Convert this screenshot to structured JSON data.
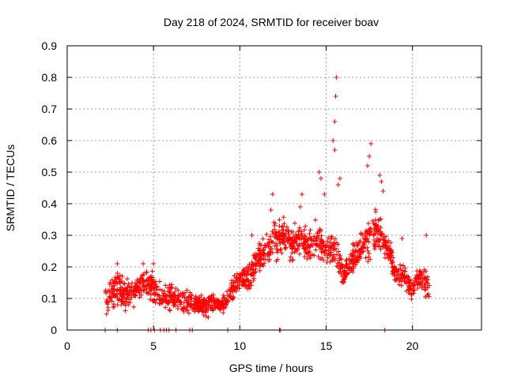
{
  "chart_data": {
    "type": "scatter",
    "title": "Day 218 of 2024, SRMTID for receiver boav",
    "xlabel": "GPS time / hours",
    "ylabel": "SRMTID / TECUs",
    "xlim": [
      0,
      24
    ],
    "ylim": [
      0,
      0.9
    ],
    "xticks": [
      0,
      5,
      10,
      15,
      20
    ],
    "xtick_labels": [
      "0",
      "5",
      "10",
      "15",
      "20"
    ],
    "yticks": [
      0,
      0.1,
      0.2,
      0.3,
      0.4,
      0.5,
      0.6,
      0.7,
      0.8,
      0.9
    ],
    "ytick_labels": [
      "0",
      "0.1",
      "0.2",
      "0.3",
      "0.4",
      "0.5",
      "0.6",
      "0.7",
      "0.8",
      "0.9"
    ],
    "grid": true,
    "marker": "+",
    "color": "#ff0000",
    "envelope": [
      [
        2.2,
        0.09,
        0.04
      ],
      [
        2.6,
        0.12,
        0.05
      ],
      [
        3.0,
        0.13,
        0.05
      ],
      [
        3.4,
        0.11,
        0.04
      ],
      [
        3.8,
        0.12,
        0.04
      ],
      [
        4.2,
        0.14,
        0.04
      ],
      [
        4.6,
        0.15,
        0.04
      ],
      [
        5.0,
        0.13,
        0.05
      ],
      [
        5.5,
        0.1,
        0.04
      ],
      [
        6.0,
        0.11,
        0.04
      ],
      [
        6.5,
        0.09,
        0.03
      ],
      [
        7.0,
        0.09,
        0.04
      ],
      [
        7.5,
        0.08,
        0.03
      ],
      [
        8.0,
        0.08,
        0.03
      ],
      [
        8.5,
        0.08,
        0.03
      ],
      [
        9.0,
        0.08,
        0.03
      ],
      [
        9.5,
        0.12,
        0.04
      ],
      [
        10.0,
        0.16,
        0.04
      ],
      [
        10.5,
        0.17,
        0.04
      ],
      [
        11.0,
        0.22,
        0.05
      ],
      [
        11.5,
        0.25,
        0.05
      ],
      [
        12.0,
        0.28,
        0.06
      ],
      [
        12.5,
        0.3,
        0.05
      ],
      [
        13.0,
        0.27,
        0.05
      ],
      [
        13.5,
        0.3,
        0.05
      ],
      [
        14.0,
        0.26,
        0.05
      ],
      [
        14.5,
        0.28,
        0.06
      ],
      [
        15.0,
        0.25,
        0.05
      ],
      [
        15.5,
        0.26,
        0.06
      ],
      [
        16.0,
        0.17,
        0.04
      ],
      [
        16.5,
        0.22,
        0.05
      ],
      [
        17.0,
        0.25,
        0.05
      ],
      [
        17.5,
        0.3,
        0.06
      ],
      [
        18.0,
        0.32,
        0.06
      ],
      [
        18.5,
        0.27,
        0.05
      ],
      [
        19.0,
        0.18,
        0.04
      ],
      [
        19.5,
        0.17,
        0.04
      ],
      [
        20.0,
        0.13,
        0.04
      ],
      [
        20.5,
        0.17,
        0.04
      ],
      [
        21.0,
        0.13,
        0.04
      ]
    ],
    "peaks": [
      [
        2.9,
        0.21
      ],
      [
        4.4,
        0.21
      ],
      [
        5.0,
        0.21
      ],
      [
        10.7,
        0.3
      ],
      [
        11.9,
        0.43
      ],
      [
        11.8,
        0.38
      ],
      [
        13.6,
        0.43
      ],
      [
        13.5,
        0.39
      ],
      [
        14.6,
        0.5
      ],
      [
        14.7,
        0.48
      ],
      [
        14.9,
        0.43
      ],
      [
        15.4,
        0.6
      ],
      [
        15.5,
        0.66
      ],
      [
        15.55,
        0.74
      ],
      [
        15.6,
        0.8
      ],
      [
        15.5,
        0.57
      ],
      [
        15.7,
        0.46
      ],
      [
        15.8,
        0.48
      ],
      [
        17.5,
        0.55
      ],
      [
        17.6,
        0.59
      ],
      [
        17.4,
        0.52
      ],
      [
        18.1,
        0.49
      ],
      [
        18.2,
        0.47
      ],
      [
        18.3,
        0.44
      ],
      [
        20.8,
        0.3
      ],
      [
        19.4,
        0.29
      ]
    ],
    "zero_points": [
      2.2,
      2.9,
      4.7,
      4.85,
      5.05,
      5.4,
      5.6,
      5.75,
      5.9,
      6.3,
      7.1,
      7.25,
      9.3,
      12.3,
      12.35,
      18.4
    ]
  }
}
